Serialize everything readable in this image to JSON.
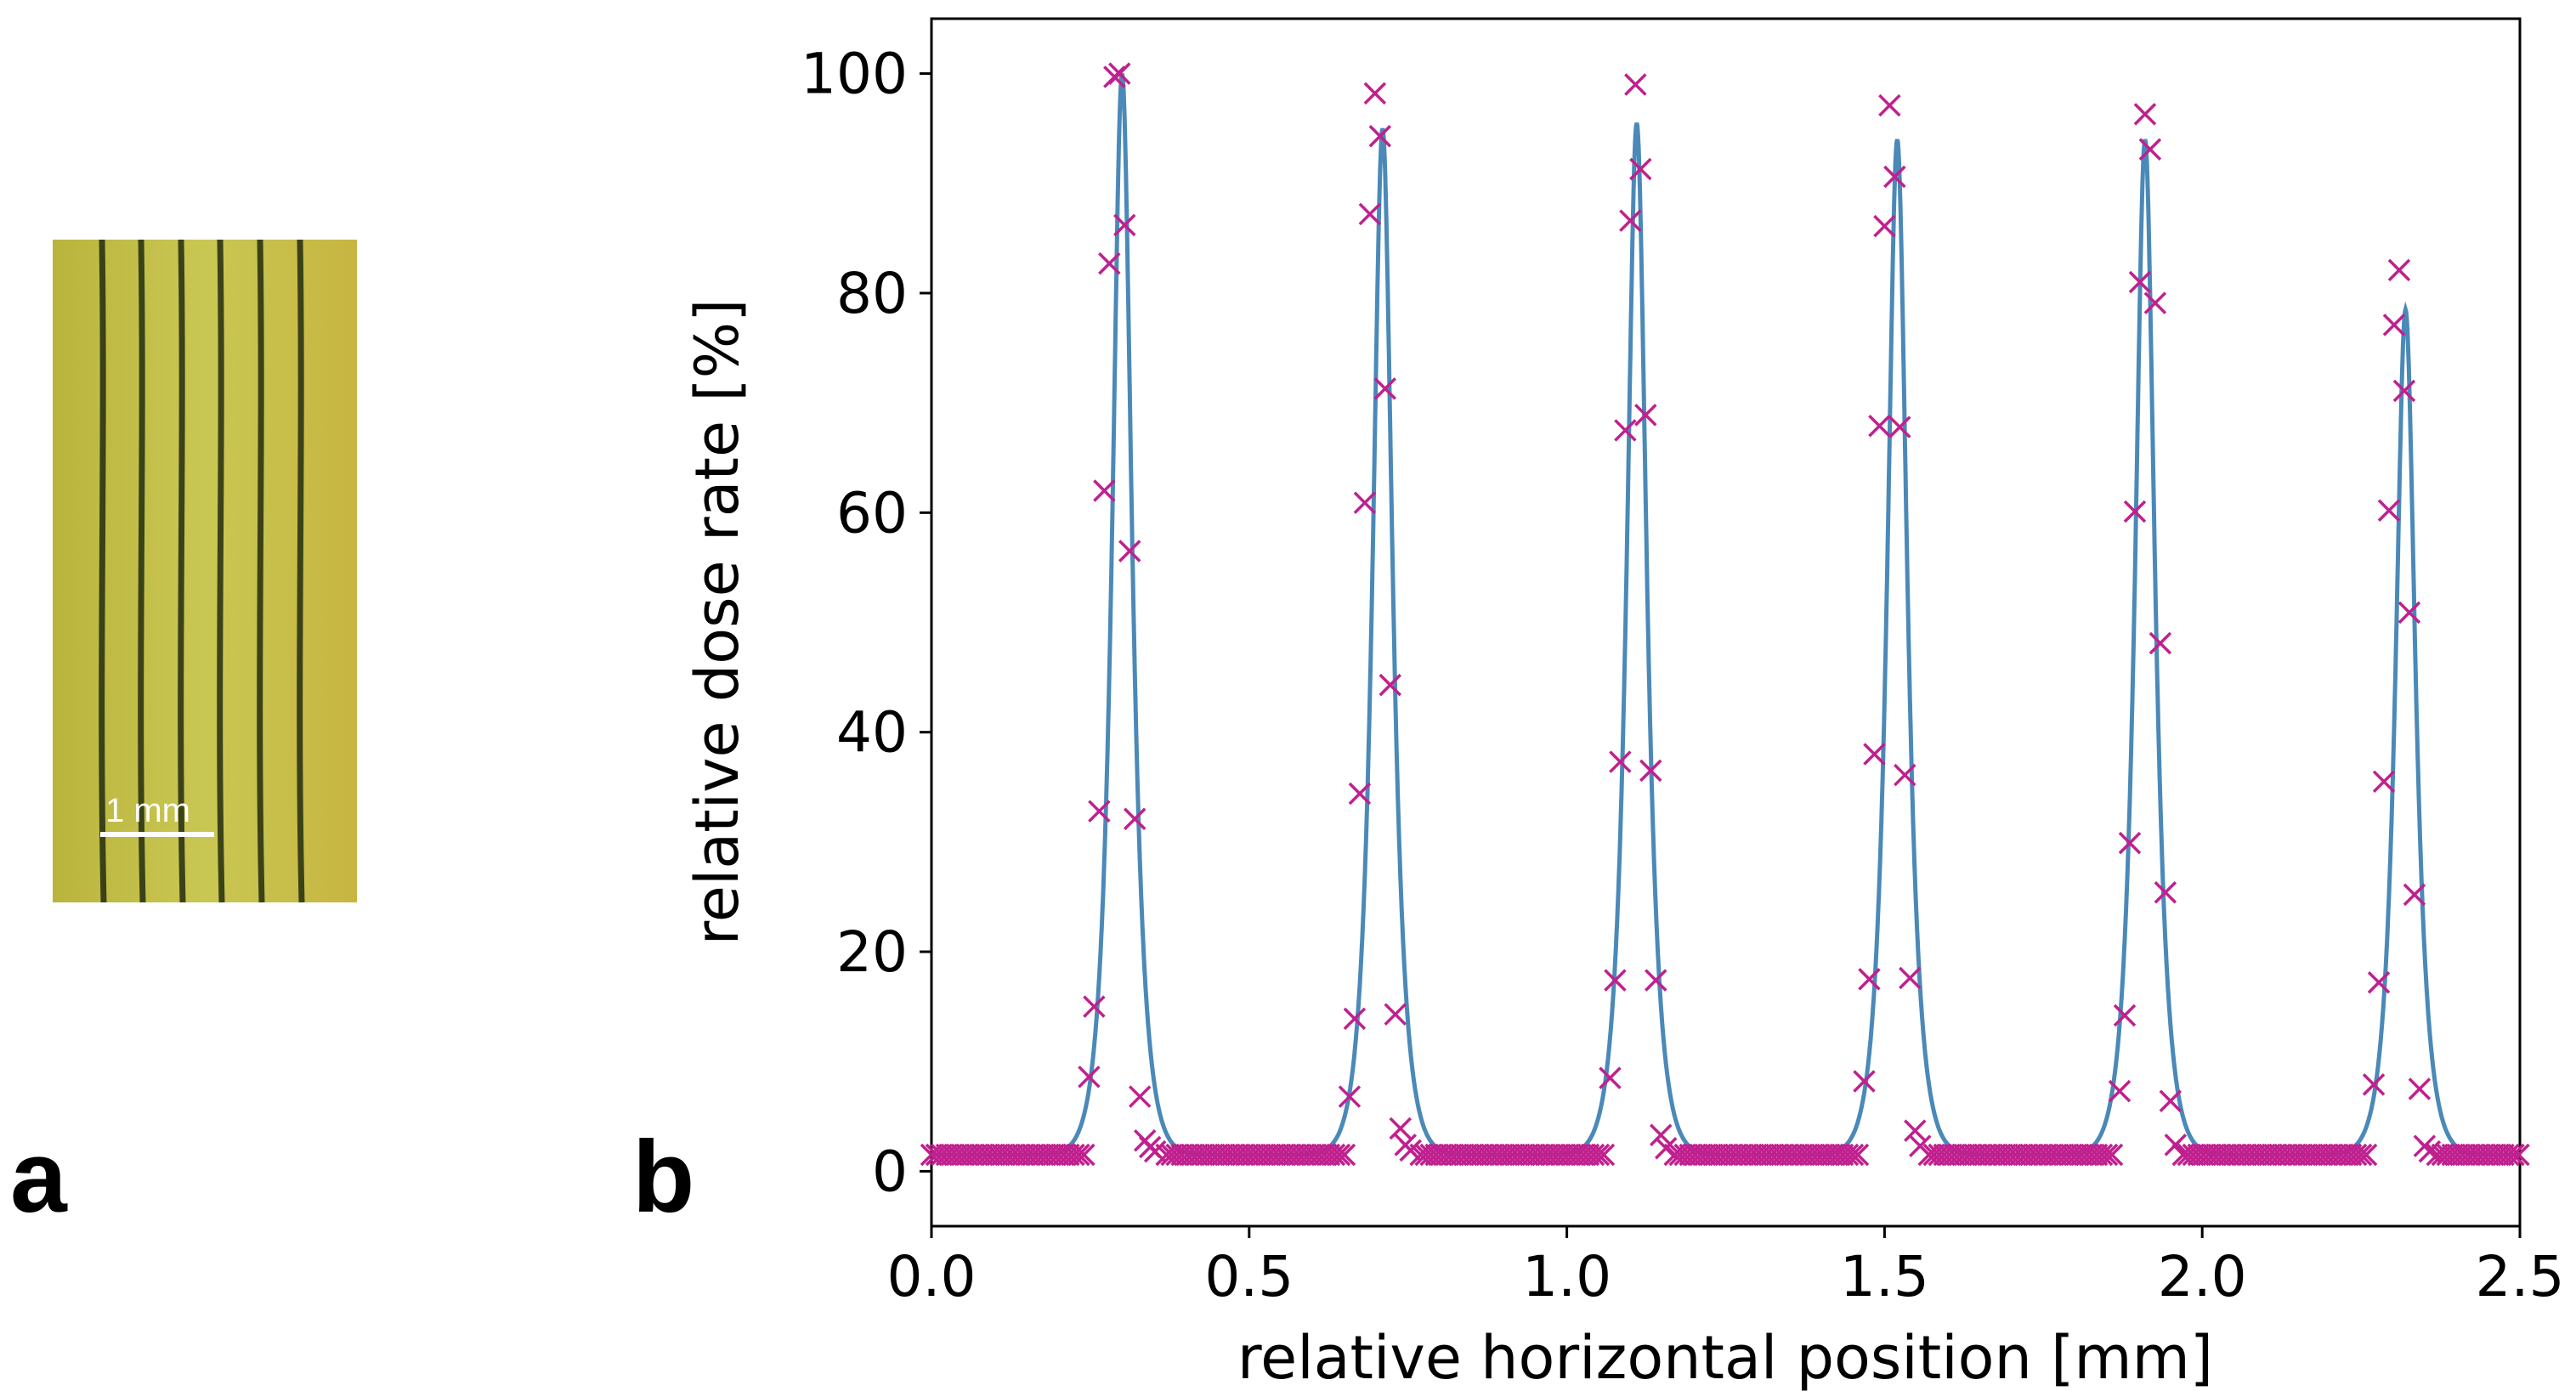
{
  "panels": {
    "a": "a",
    "b": "b"
  },
  "film": {
    "scale_bar_label": "1 mm",
    "film_color": "#c7c24a",
    "line_color": "#2b3413"
  },
  "chart_data": {
    "type": "line",
    "xlabel": "relative horizontal position [mm]",
    "ylabel": "relative dose rate [%]",
    "xlim": [
      0.0,
      2.5
    ],
    "ylim": [
      -5,
      105
    ],
    "x_ticks": [
      "0.0",
      "0.5",
      "1.0",
      "1.5",
      "2.0",
      "2.5"
    ],
    "y_ticks": [
      "0",
      "20",
      "40",
      "60",
      "80",
      "100"
    ],
    "grid": false,
    "legend": "none",
    "series": [
      {
        "kind": "line",
        "color": "#4a89b8",
        "peaks": [
          {
            "x": 0.3,
            "peak": 100,
            "fwhm": 0.04
          },
          {
            "x": 0.71,
            "peak": 95,
            "fwhm": 0.04
          },
          {
            "x": 1.11,
            "peak": 95.5,
            "fwhm": 0.04
          },
          {
            "x": 1.52,
            "peak": 94,
            "fwhm": 0.04
          },
          {
            "x": 1.91,
            "peak": 94,
            "fwhm": 0.04
          },
          {
            "x": 2.32,
            "peak": 78.5,
            "fwhm": 0.04
          }
        ],
        "valley_level": 1.5
      },
      {
        "kind": "scatter",
        "marker": "x",
        "color": "#c0208e",
        "x": [
          0.248,
          0.256,
          0.264,
          0.272,
          0.28,
          0.288,
          0.296,
          0.304,
          0.312,
          0.32,
          0.328,
          0.336,
          0.344,
          0.352,
          0.658,
          0.666,
          0.674,
          0.682,
          0.69,
          0.698,
          0.706,
          0.714,
          0.722,
          0.73,
          0.738,
          0.746,
          0.754,
          1.068,
          1.076,
          1.084,
          1.092,
          1.1,
          1.108,
          1.116,
          1.124,
          1.132,
          1.14,
          1.148,
          1.156,
          1.468,
          1.476,
          1.484,
          1.492,
          1.5,
          1.508,
          1.516,
          1.524,
          1.532,
          1.54,
          1.548,
          1.556,
          1.87,
          1.878,
          1.886,
          1.894,
          1.902,
          1.91,
          1.918,
          1.926,
          1.934,
          1.942,
          1.95,
          1.958,
          2.27,
          2.278,
          2.286,
          2.294,
          2.302,
          2.31,
          2.318,
          2.326,
          2.334,
          2.342,
          2.35,
          2.358
        ],
        "y": [
          8.6,
          15,
          32.8,
          62,
          82.7,
          99.7,
          100,
          86.2,
          56.5,
          32.1,
          6.8,
          2.8,
          2.2,
          1.8,
          6.8,
          13.9,
          34.4,
          60.9,
          87.2,
          98.2,
          94.3,
          71.3,
          44.3,
          14.3,
          3.9,
          2.4,
          1.9,
          8.5,
          17.4,
          37.3,
          67.5,
          86.6,
          99,
          91.3,
          68.9,
          36.5,
          17.4,
          3.3,
          2.1,
          8.2,
          17.5,
          38,
          67.9,
          86.1,
          97.1,
          90.6,
          67.8,
          36.1,
          17.6,
          3.7,
          2.3,
          7.3,
          14.2,
          29.9,
          60.1,
          81,
          96.3,
          93.1,
          79.1,
          48.1,
          25.4,
          6.4,
          2.4,
          7.9,
          17.2,
          35.5,
          60.2,
          77.1,
          82.1,
          71.1,
          50.9,
          25.2,
          7.5,
          2.3,
          1.8
        ],
        "background": [
          {
            "from": 0.0,
            "to": 0.24,
            "level": 1.5
          },
          {
            "from": 0.37,
            "to": 0.65,
            "level": 1.5
          },
          {
            "from": 0.77,
            "to": 1.06,
            "level": 1.5
          },
          {
            "from": 1.17,
            "to": 1.46,
            "level": 1.5
          },
          {
            "from": 1.57,
            "to": 1.86,
            "level": 1.5
          },
          {
            "from": 1.97,
            "to": 2.26,
            "level": 1.5
          },
          {
            "from": 2.37,
            "to": 2.5,
            "level": 1.5
          }
        ],
        "background_step": 0.008
      }
    ]
  }
}
